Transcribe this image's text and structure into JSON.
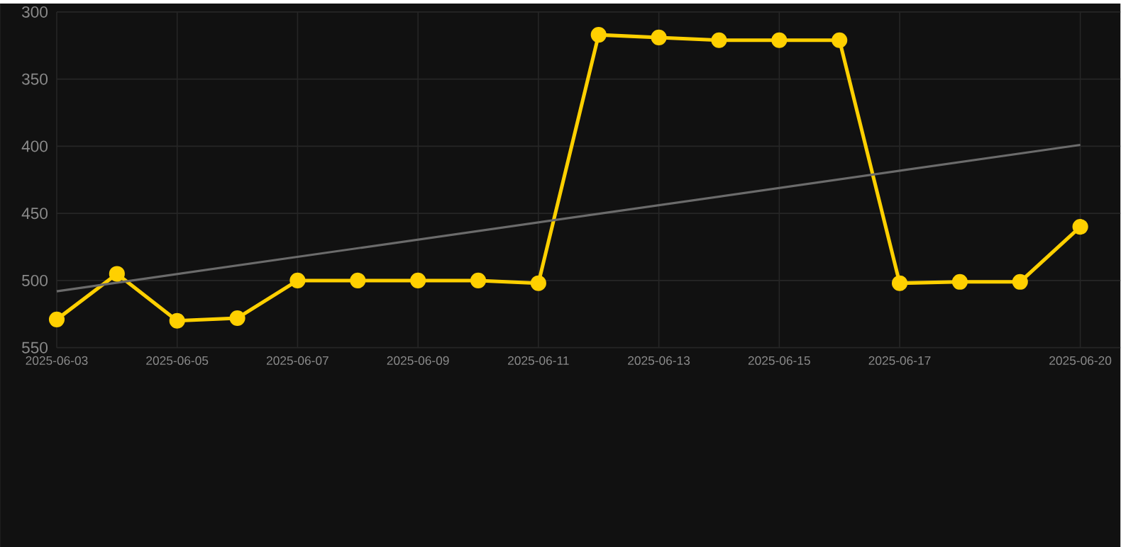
{
  "chart_data": {
    "type": "line",
    "x": [
      "2025-06-03",
      "2025-06-04",
      "2025-06-05",
      "2025-06-06",
      "2025-06-07",
      "2025-06-08",
      "2025-06-09",
      "2025-06-10",
      "2025-06-11",
      "2025-06-12",
      "2025-06-13",
      "2025-06-14",
      "2025-06-15",
      "2025-06-16",
      "2025-06-17",
      "2025-06-18",
      "2025-06-19",
      "2025-06-20"
    ],
    "series": [
      {
        "color": "#ffd000",
        "marker": "circle",
        "values": [
          529,
          495,
          530,
          528,
          500,
          500,
          500,
          500,
          502,
          317,
          319,
          321,
          321,
          321,
          502,
          501,
          501,
          460
        ]
      },
      {
        "type": "line",
        "color": "#6b6b6b",
        "marker": "none",
        "x": [
          "2025-06-03",
          "2025-06-20"
        ],
        "values": [
          508,
          399
        ]
      }
    ],
    "ylim": [
      550,
      300
    ],
    "yticks": [
      300,
      350,
      400,
      450,
      500,
      550
    ],
    "xlim": [
      "2025-06-03",
      "2025-06-20T16:00"
    ],
    "xticks": [
      "2025-06-03",
      "2025-06-05",
      "2025-06-07",
      "2025-06-09",
      "2025-06-11",
      "2025-06-13",
      "2025-06-15",
      "2025-06-17",
      "2025-06-20"
    ],
    "grid": true,
    "line_style": "solid"
  }
}
